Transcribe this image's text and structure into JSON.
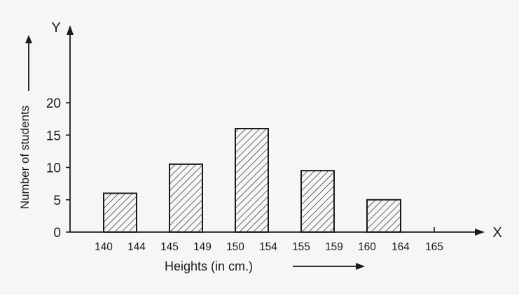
{
  "chart_data": {
    "type": "bar",
    "title": "",
    "xlabel": "Heights (in cm.)",
    "ylabel": "Number of students",
    "x_axis_letter": "X",
    "y_axis_letter": "Y",
    "categories": [
      "140 144",
      "145 149",
      "150 154",
      "155 159",
      "160 164"
    ],
    "class_bounds": [
      [
        140,
        144
      ],
      [
        145,
        149
      ],
      [
        150,
        154
      ],
      [
        155,
        159
      ],
      [
        160,
        164
      ]
    ],
    "values": [
      6,
      10.5,
      16,
      9.5,
      5
    ],
    "x_tick_labels": [
      {
        "text": "140",
        "value": 140
      },
      {
        "text": "144",
        "value": 144
      },
      {
        "text": "145",
        "value": 145
      },
      {
        "text": "149",
        "value": 149
      },
      {
        "text": "150",
        "value": 150
      },
      {
        "text": "154",
        "value": 154
      },
      {
        "text": "155",
        "value": 155
      },
      {
        "text": "159",
        "value": 159
      },
      {
        "text": "160",
        "value": 160
      },
      {
        "text": "164",
        "value": 164
      },
      {
        "text": "165",
        "value": 165
      }
    ],
    "y_ticks": [
      0,
      5,
      10,
      15,
      20
    ],
    "ylim": [
      0,
      20
    ],
    "bar_fill": "diagonal hatch",
    "grid": false,
    "colors": {
      "ink": "#1a1a1a",
      "paper": "#f7f6f4"
    }
  }
}
